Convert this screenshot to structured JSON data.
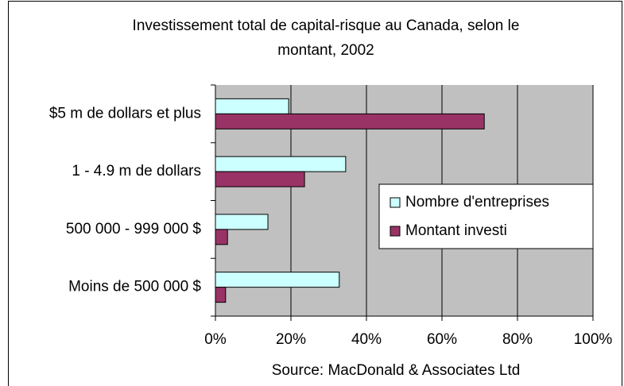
{
  "chart_data": {
    "type": "barh",
    "title": [
      "Investissement total de capital-risque au Canada, selon le",
      "montant, 2002"
    ],
    "categories": [
      "$5 m de dollars et plus",
      "1 - 4.9 m de dollars",
      "500 000 - 999 000 $",
      "Moins de 500 000 $"
    ],
    "series": [
      {
        "name": "Nombre d'entreprises",
        "color": "#ccffff",
        "values": [
          19.4,
          34.5,
          13.9,
          32.8
        ]
      },
      {
        "name": "Montant investi",
        "color": "#993366",
        "values": [
          71.2,
          23.6,
          3.2,
          2.7
        ]
      }
    ],
    "xlim": [
      0,
      100
    ],
    "xticks": [
      {
        "value": 0,
        "label": "0%"
      },
      {
        "value": 20,
        "label": "20%"
      },
      {
        "value": 40,
        "label": "40%"
      },
      {
        "value": 60,
        "label": "60%"
      },
      {
        "value": 80,
        "label": "80%"
      },
      {
        "value": 100,
        "label": "100%"
      }
    ],
    "grid": true,
    "plot_background": "#c0c0c0",
    "legend": "right",
    "source": "Source: MacDonald & Associates Ltd"
  }
}
